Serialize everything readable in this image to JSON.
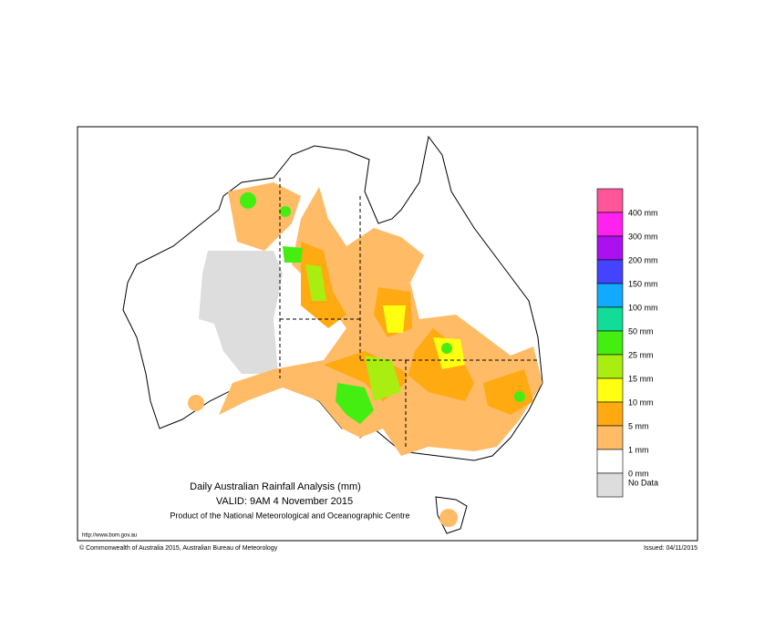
{
  "header": {
    "title": "Daily Australian Rainfall Analysis (mm)",
    "valid": "VALID: 9AM  4 November 2015",
    "producer": "Product of the National Meteorological and Oceanographic Centre"
  },
  "legend": {
    "colors": [
      "#ff5599",
      "#ff22ee",
      "#aa11ee",
      "#4444ff",
      "#11aaff",
      "#11dd99",
      "#44ee11",
      "#aaee11",
      "#ffff11",
      "#ffaa11",
      "#ffbb66",
      "#ffffff",
      "#dddddd"
    ],
    "labels": [
      "400 mm",
      "300 mm",
      "200 mm",
      "150 mm",
      "100 mm",
      "50 mm",
      "25 mm",
      "15 mm",
      "10 mm",
      "5 mm",
      "1 mm",
      "0 mm"
    ],
    "no_data": "No Data"
  },
  "footer": {
    "url": "http://www.bom.gov.au",
    "copyright": "© Commonwealth of Australia 2015, Australian Bureau of Meteorology",
    "issued": "Issued: 04/11/2015"
  }
}
